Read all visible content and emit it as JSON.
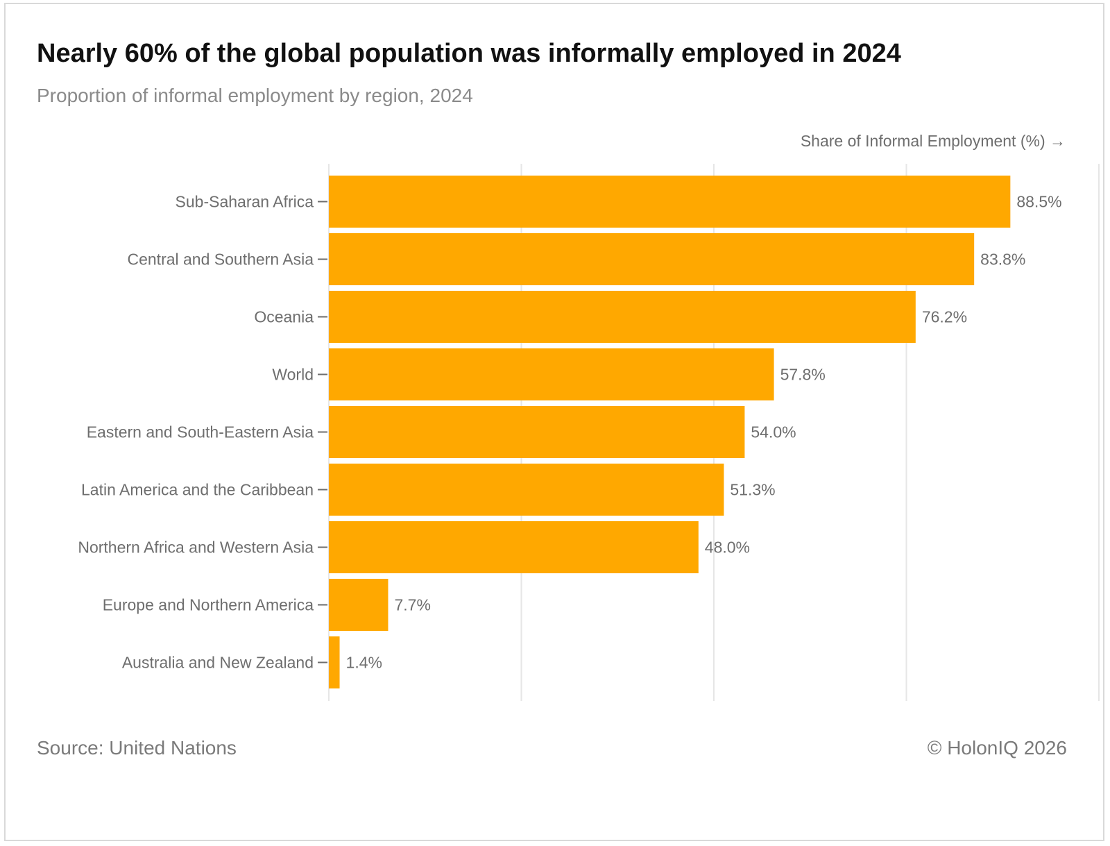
{
  "header": {
    "title": "Nearly 60% of the global population was informally employed in 2024",
    "subtitle": "Proportion of informal employment by region, 2024"
  },
  "footer": {
    "source": "Source: United Nations",
    "copyright": "© HolonIQ 2026"
  },
  "colors": {
    "bar": "#FFA800",
    "grid": "#e6e6e6",
    "text": "#6e6e6e"
  },
  "chart_data": {
    "type": "bar",
    "orientation": "horizontal",
    "title": "Nearly 60% of the global population was informally employed in 2024",
    "subtitle": "Proportion of informal employment by region, 2024",
    "xlabel": "Share of Informal Employment (%) →",
    "ylabel": "",
    "xlim": [
      0,
      100
    ],
    "gridlines": [
      0,
      25,
      50,
      75,
      100
    ],
    "categories": [
      "Sub-Saharan Africa",
      "Central and Southern Asia",
      "Oceania",
      "World",
      "Eastern and South-Eastern Asia",
      "Latin America and the Caribbean",
      "Northern Africa and Western Asia",
      "Europe and Northern America",
      "Australia and New Zealand"
    ],
    "values": [
      88.5,
      83.8,
      76.2,
      57.8,
      54.0,
      51.3,
      48.0,
      7.7,
      1.4
    ],
    "value_labels": [
      "88.5%",
      "83.8%",
      "76.2%",
      "57.8%",
      "54.0%",
      "51.3%",
      "48.0%",
      "7.7%",
      "1.4%"
    ]
  }
}
